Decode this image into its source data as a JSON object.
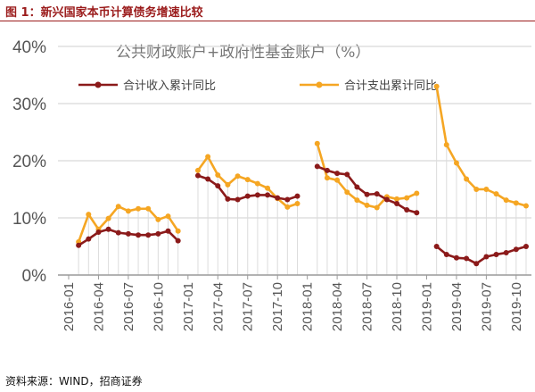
{
  "caption": "图 1：新兴国家本币计算债务增速比较",
  "source": "资料来源：WIND，招商证券",
  "colors": {
    "series1": "#8b1a1a",
    "series2": "#f5a623",
    "grid": "#cfcfcf",
    "axis": "#9a9a9a"
  },
  "chart_data": {
    "type": "line",
    "title": "公共财政账户+政府性基金账户（%）",
    "ylim": [
      0,
      40
    ],
    "yticks": [
      0,
      10,
      20,
      30,
      40
    ],
    "ytick_labels": [
      "0%",
      "10%",
      "20%",
      "30%",
      "40%"
    ],
    "x": [
      "2016-02",
      "2016-03",
      "2016-04",
      "2016-05",
      "2016-06",
      "2016-07",
      "2016-08",
      "2016-09",
      "2016-10",
      "2016-11",
      "2016-12",
      "2017-02",
      "2017-03",
      "2017-04",
      "2017-05",
      "2017-06",
      "2017-07",
      "2017-08",
      "2017-09",
      "2017-10",
      "2017-11",
      "2017-12",
      "2018-02",
      "2018-03",
      "2018-04",
      "2018-05",
      "2018-06",
      "2018-07",
      "2018-08",
      "2018-09",
      "2018-10",
      "2018-11",
      "2018-12",
      "2019-02",
      "2019-03",
      "2019-04",
      "2019-05",
      "2019-06",
      "2019-07",
      "2019-08",
      "2019-09",
      "2019-10",
      "2019-11"
    ],
    "xtick_labels": [
      "2016-01",
      "2016-04",
      "2016-07",
      "2016-10",
      "2017-01",
      "2017-04",
      "2017-07",
      "2017-10",
      "2018-01",
      "2018-04",
      "2018-07",
      "2018-10",
      "2019-01",
      "2019-04",
      "2019-07",
      "2019-10"
    ],
    "legend_position": "top-left",
    "series": [
      {
        "name": "合计收入累计同比",
        "values": [
          5.2,
          6.3,
          7.5,
          8.0,
          7.4,
          7.2,
          7.0,
          7.0,
          7.2,
          7.7,
          6.0,
          17.4,
          16.8,
          15.6,
          13.3,
          13.2,
          13.8,
          14.0,
          14.0,
          13.5,
          13.2,
          13.8,
          19.0,
          18.3,
          17.8,
          17.6,
          15.4,
          14.1,
          14.2,
          13.2,
          12.5,
          11.4,
          10.9,
          5.0,
          3.6,
          3.0,
          2.9,
          2.0,
          3.2,
          3.6,
          3.9,
          4.5,
          5.0
        ]
      },
      {
        "name": "合计支出累计同比",
        "values": [
          5.8,
          10.6,
          8.0,
          9.9,
          12.0,
          11.2,
          11.6,
          11.6,
          9.7,
          10.3,
          7.7,
          18.3,
          20.7,
          17.5,
          15.8,
          17.3,
          16.7,
          16.0,
          15.2,
          13.4,
          11.9,
          12.5,
          23.0,
          17.0,
          16.6,
          14.5,
          13.1,
          12.2,
          11.8,
          13.7,
          13.3,
          13.5,
          14.3,
          33.0,
          22.8,
          19.6,
          16.8,
          15.0,
          15.0,
          14.2,
          13.1,
          12.6,
          12.1
        ]
      }
    ]
  }
}
